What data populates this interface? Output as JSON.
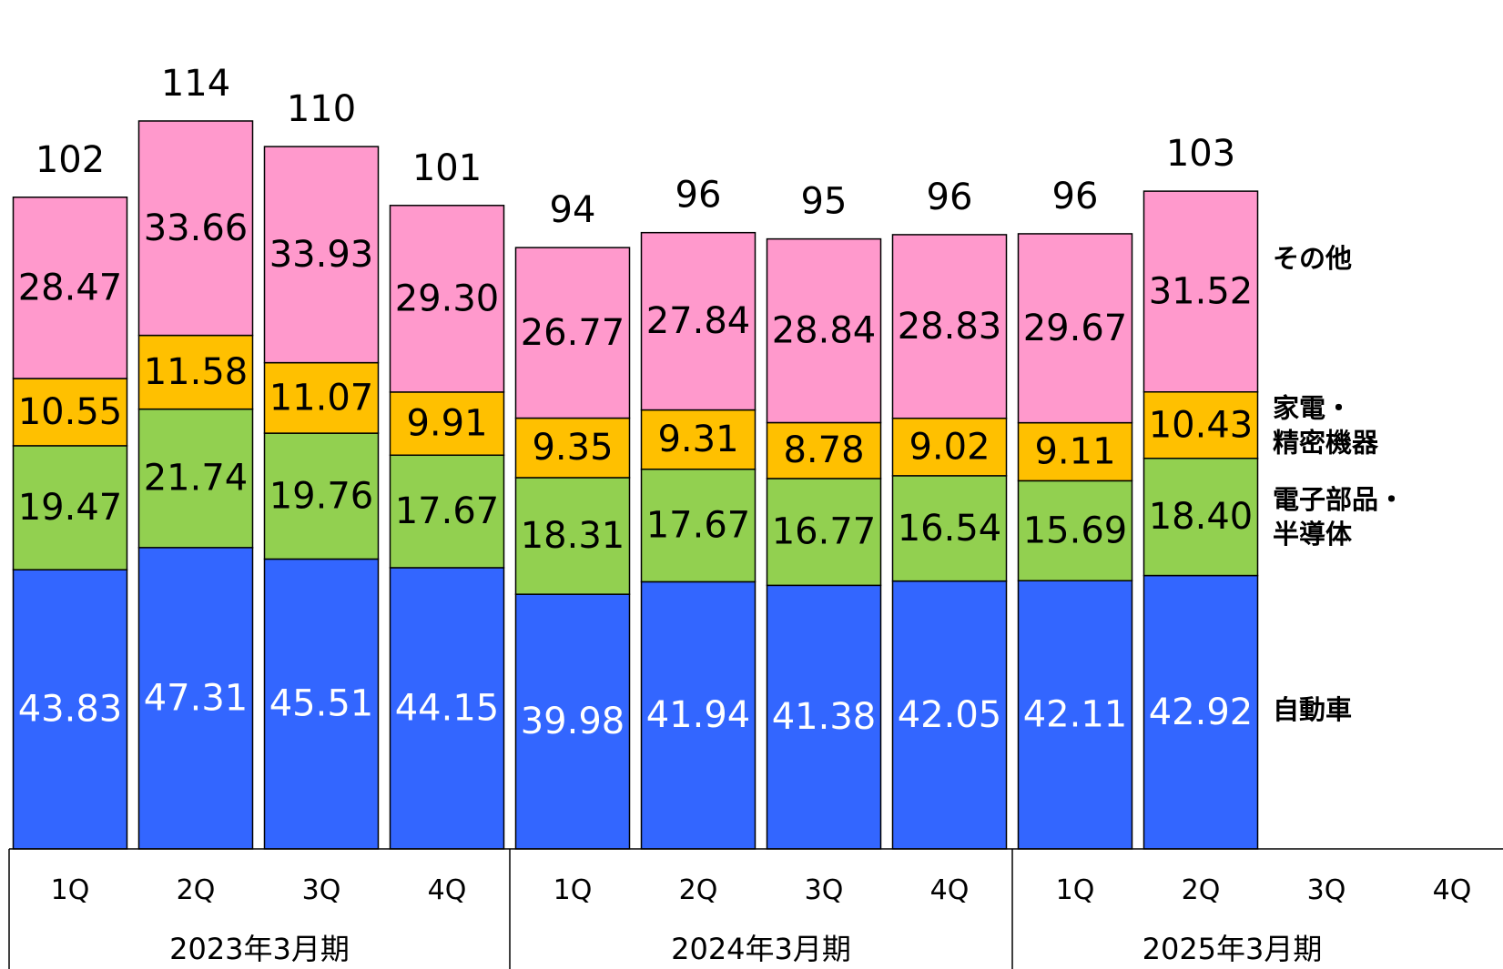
{
  "chart_data": {
    "type": "bar",
    "stacked": true,
    "categories": [
      {
        "quarter": "1Q",
        "period": "2023年3月期"
      },
      {
        "quarter": "2Q",
        "period": "2023年3月期"
      },
      {
        "quarter": "3Q",
        "period": "2023年3月期"
      },
      {
        "quarter": "4Q",
        "period": "2023年3月期"
      },
      {
        "quarter": "1Q",
        "period": "2024年3月期"
      },
      {
        "quarter": "2Q",
        "period": "2024年3月期"
      },
      {
        "quarter": "3Q",
        "period": "2024年3月期"
      },
      {
        "quarter": "4Q",
        "period": "2024年3月期"
      },
      {
        "quarter": "1Q",
        "period": "2025年3月期"
      },
      {
        "quarter": "2Q",
        "period": "2025年3月期"
      },
      {
        "quarter": "3Q",
        "period": "2025年3月期"
      },
      {
        "quarter": "4Q",
        "period": "2025年3月期"
      }
    ],
    "periods": [
      "2023年3月期",
      "2024年3月期",
      "2025年3月期"
    ],
    "series": [
      {
        "name": "自動車",
        "legend_lines": [
          "自動車"
        ],
        "color": "#3366ff",
        "label_color": "#ffffff",
        "values": [
          43.83,
          47.31,
          45.51,
          44.15,
          39.98,
          41.94,
          41.38,
          42.05,
          42.11,
          42.92,
          null,
          null
        ]
      },
      {
        "name": "電子部品・半導体",
        "legend_lines": [
          "電子部品・",
          "半導体"
        ],
        "color": "#92d050",
        "label_color": "#000000",
        "values": [
          19.47,
          21.74,
          19.76,
          17.67,
          18.31,
          17.67,
          16.77,
          16.54,
          15.69,
          18.4,
          null,
          null
        ]
      },
      {
        "name": "家電・精密機器",
        "legend_lines": [
          "家電・",
          "精密機器"
        ],
        "color": "#ffc000",
        "label_color": "#000000",
        "values": [
          10.55,
          11.58,
          11.07,
          9.91,
          9.35,
          9.31,
          8.78,
          9.02,
          9.11,
          10.43,
          null,
          null
        ]
      },
      {
        "name": "その他",
        "legend_lines": [
          "その他"
        ],
        "color": "#ff99cc",
        "label_color": "#000000",
        "values": [
          28.47,
          33.66,
          33.93,
          29.3,
          26.77,
          27.84,
          28.84,
          28.83,
          29.67,
          31.52,
          null,
          null
        ]
      }
    ],
    "totals": [
      102,
      114,
      110,
      101,
      94,
      96,
      95,
      96,
      96,
      103,
      null,
      null
    ],
    "title": "",
    "xlabel": "",
    "ylabel": "",
    "ylim": [
      0,
      118
    ],
    "grid": false,
    "legend": "right"
  }
}
